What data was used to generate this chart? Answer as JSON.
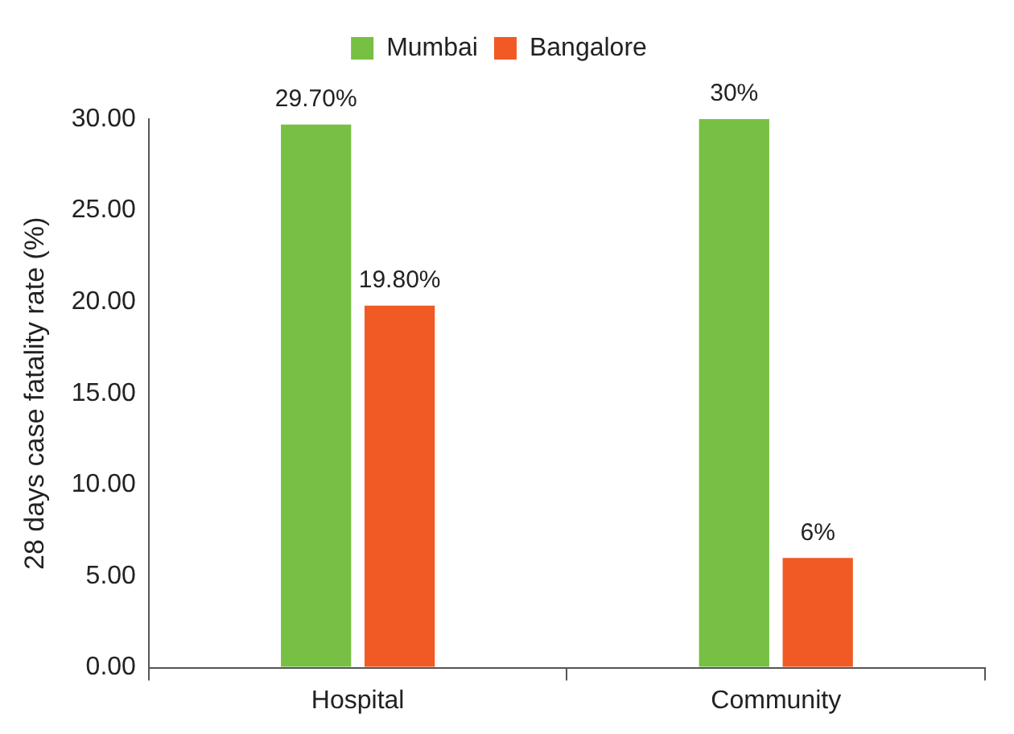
{
  "chart_data": {
    "type": "bar",
    "ylabel": "28 days case fatality rate (%)",
    "categories": [
      "Hospital",
      "Community"
    ],
    "series": [
      {
        "name": "Mumbai",
        "color": "#77c043",
        "values": [
          29.7,
          30
        ],
        "value_labels": [
          "29.70%",
          "30%"
        ]
      },
      {
        "name": "Bangalore",
        "color": "#f15a24",
        "values": [
          19.8,
          6
        ],
        "value_labels": [
          "19.80%",
          "6%"
        ]
      }
    ],
    "ylim": [
      0,
      30
    ],
    "yticks": [
      {
        "value": 0,
        "label": "0.00"
      },
      {
        "value": 5,
        "label": "5.00"
      },
      {
        "value": 10,
        "label": "10.00"
      },
      {
        "value": 15,
        "label": "15.00"
      },
      {
        "value": 20,
        "label": "20.00"
      },
      {
        "value": 25,
        "label": "25.00"
      },
      {
        "value": 30,
        "label": "30.00"
      }
    ],
    "grid": false,
    "legend": "top"
  }
}
